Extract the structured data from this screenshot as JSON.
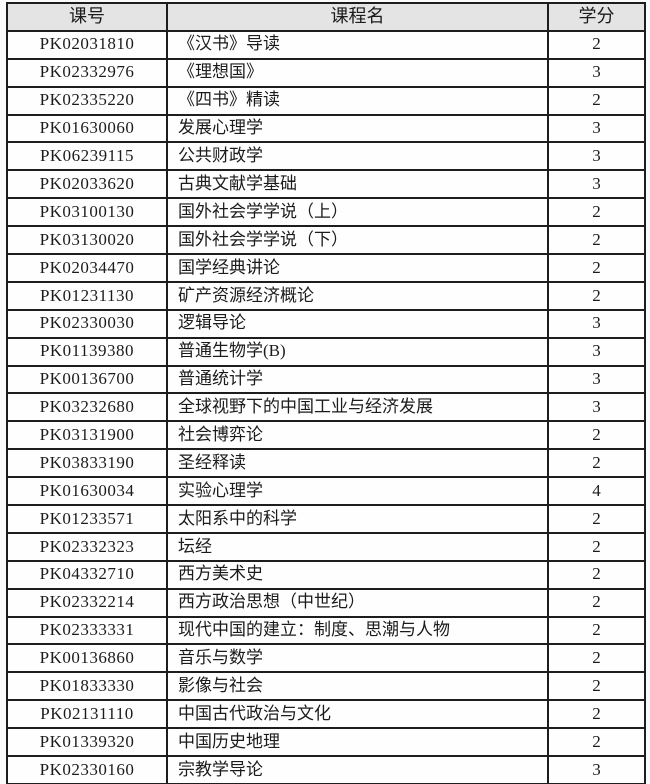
{
  "theme": {
    "header_bg": "#e4e4e4",
    "border_color": "#1d1d1d",
    "cell_bg": "#fefefe",
    "page_bg": "#fbfbfb",
    "text_color": "#1b1b1b"
  },
  "table": {
    "columns": [
      {
        "key": "code",
        "label": "课号"
      },
      {
        "key": "name",
        "label": "课程名"
      },
      {
        "key": "credits",
        "label": "学分"
      }
    ],
    "rows": [
      [
        "PK02031810",
        "《汉书》导读",
        "2"
      ],
      [
        "PK02332976",
        "《理想国》",
        "3"
      ],
      [
        "PK02335220",
        "《四书》精读",
        "2"
      ],
      [
        "PK01630060",
        "发展心理学",
        "3"
      ],
      [
        "PK06239115",
        "公共财政学",
        "3"
      ],
      [
        "PK02033620",
        "古典文献学基础",
        "3"
      ],
      [
        "PK03100130",
        "国外社会学学说（上）",
        "2"
      ],
      [
        "PK03130020",
        "国外社会学学说（下）",
        "2"
      ],
      [
        "PK02034470",
        "国学经典讲论",
        "2"
      ],
      [
        "PK01231130",
        "矿产资源经济概论",
        "2"
      ],
      [
        "PK02330030",
        "逻辑导论",
        "3"
      ],
      [
        "PK01139380",
        "普通生物学(B)",
        "3"
      ],
      [
        "PK00136700",
        "普通统计学",
        "3"
      ],
      [
        "PK03232680",
        "全球视野下的中国工业与经济发展",
        "3"
      ],
      [
        "PK03131900",
        "社会博弈论",
        "2"
      ],
      [
        "PK03833190",
        "圣经释读",
        "2"
      ],
      [
        "PK01630034",
        "实验心理学",
        "4"
      ],
      [
        "PK01233571",
        "太阳系中的科学",
        "2"
      ],
      [
        "PK02332323",
        "坛经",
        "2"
      ],
      [
        "PK04332710",
        "西方美术史",
        "2"
      ],
      [
        "PK02332214",
        "西方政治思想（中世纪）",
        "2"
      ],
      [
        "PK02333331",
        "现代中国的建立：制度、思潮与人物",
        "2"
      ],
      [
        "PK00136860",
        "音乐与数学",
        "2"
      ],
      [
        "PK01833330",
        "影像与社会",
        "2"
      ],
      [
        "PK02131110",
        "中国古代政治与文化",
        "2"
      ],
      [
        "PK01339320",
        "中国历史地理",
        "2"
      ],
      [
        "PK02330160",
        "宗教学导论",
        "3"
      ]
    ]
  }
}
